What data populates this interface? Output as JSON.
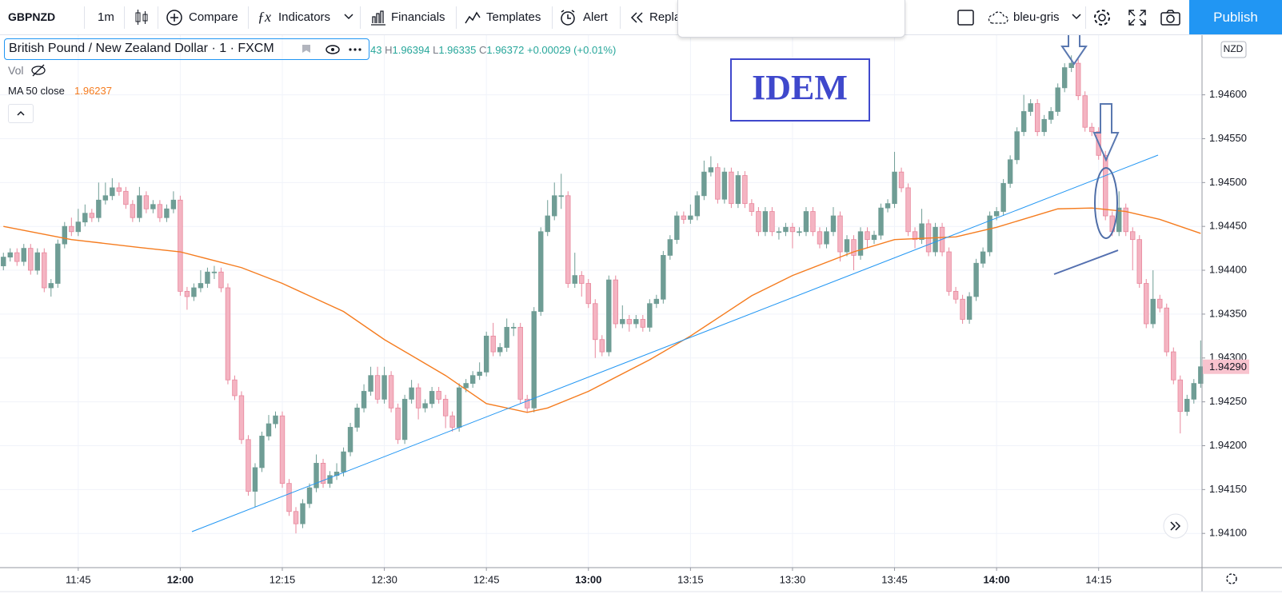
{
  "toolbar": {
    "symbol": "GBPNZD",
    "interval": "1m",
    "buttons": [
      "Compare",
      "Indicators",
      "Financials",
      "Templates",
      "Alert",
      "Repla"
    ],
    "layout_name": "bleu-gris",
    "publish": "Publish"
  },
  "legend": {
    "title": "British Pound / New Zealand Dollar · 1 · FXCM",
    "open_fragment": "43",
    "high_letter": "H",
    "high": "1.96394",
    "low_letter": "L",
    "low": "1.96335",
    "close_letter": "C",
    "close": "1.96372",
    "change": "+0.00029 (+0.01%)",
    "vol": "Vol",
    "ma_name": "MA 50 close",
    "ma_value": "1.96237"
  },
  "chart_data": {
    "type": "candlestick",
    "annotation": "IDEM",
    "currency": "NZD",
    "last_price_label": "1.94290",
    "up_color": "#6f9d95",
    "down_color": "#f4b4c2",
    "down_edge": "#e8879c",
    "grid": true,
    "xlim": [
      -0.5,
      176.2
    ],
    "ylim": [
      1.94061,
      1.94668
    ],
    "yticks": [
      {
        "value": 1.941,
        "label": "1.94100"
      },
      {
        "value": 1.9415,
        "label": "1.94150"
      },
      {
        "value": 1.942,
        "label": "1.94200"
      },
      {
        "value": 1.9425,
        "label": "1.94250"
      },
      {
        "value": 1.943,
        "label": "1.94300"
      },
      {
        "value": 1.9435,
        "label": "1.94350"
      },
      {
        "value": 1.944,
        "label": "1.94400"
      },
      {
        "value": 1.9445,
        "label": "1.94450"
      },
      {
        "value": 1.945,
        "label": "1.94500"
      },
      {
        "value": 1.9455,
        "label": "1.94550"
      },
      {
        "value": 1.946,
        "label": "1.94600"
      }
    ],
    "xticks": [
      {
        "value": 11,
        "label": "11:45"
      },
      {
        "value": 26,
        "label": "12:00"
      },
      {
        "value": 41,
        "label": "12:15"
      },
      {
        "value": 56,
        "label": "12:30"
      },
      {
        "value": 71,
        "label": "12:45"
      },
      {
        "value": 86,
        "label": "13:00"
      },
      {
        "value": 101,
        "label": "13:15"
      },
      {
        "value": 116,
        "label": "13:30"
      },
      {
        "value": 131,
        "label": "13:45"
      },
      {
        "value": 146,
        "label": "14:00"
      },
      {
        "value": 161,
        "label": "14:15"
      }
    ],
    "open": [
      1.94405,
      1.94415,
      1.9442,
      1.9441,
      1.94425,
      1.944,
      1.9442,
      1.9438,
      1.94385,
      1.9443,
      1.9445,
      1.94444,
      1.94455,
      1.94465,
      1.9446,
      1.9448,
      1.94485,
      1.94494,
      1.9449,
      1.94475,
      1.9446,
      1.94485,
      1.9447,
      1.94475,
      1.9446,
      1.9447,
      1.9448,
      1.94376,
      1.9437,
      1.9438,
      1.94385,
      1.94398,
      1.94398,
      1.9438,
      1.94275,
      1.94257,
      1.94207,
      1.94148,
      1.94175,
      1.94211,
      1.94225,
      1.94234,
      1.94157,
      1.94125,
      1.94111,
      1.94134,
      1.94152,
      1.9418,
      1.94157,
      1.94166,
      1.9417,
      1.94193,
      1.94221,
      1.94243,
      1.94262,
      1.9428,
      1.94253,
      1.9428,
      1.94243,
      1.94207,
      1.94253,
      1.94266,
      1.94243,
      1.94248,
      1.94262,
      1.94253,
      1.94234,
      1.94221,
      1.94266,
      1.94271,
      1.9428,
      1.94284,
      1.94325,
      1.94307,
      1.94312,
      1.94335,
      1.94335,
      1.94253,
      1.94243,
      1.94353,
      1.94444,
      1.94462,
      1.94485,
      1.94485,
      1.94385,
      1.94394,
      1.94385,
      1.94362,
      1.94321,
      1.94307,
      1.94389,
      1.94339,
      1.94344,
      1.94339,
      1.94344,
      1.94335,
      1.94362,
      1.94367,
      1.94417,
      1.94435,
      1.94462,
      1.94458,
      1.94462,
      1.94485,
      1.94512,
      1.94517,
      1.94481,
      1.94512,
      1.94476,
      1.94508,
      1.94476,
      1.94467,
      1.94444,
      1.94467,
      1.94444,
      1.94444,
      1.94449,
      1.94444,
      1.94444,
      1.94467,
      1.94444,
      1.9443,
      1.94444,
      1.94462,
      1.94421,
      1.94435,
      1.94417,
      1.94444,
      1.94435,
      1.9444,
      1.94471,
      1.94476,
      1.94512,
      1.94494,
      1.94444,
      1.94435,
      1.94453,
      1.94421,
      1.94449,
      1.94421,
      1.94376,
      1.94367,
      1.94344,
      1.9437,
      1.94408,
      1.94421,
      1.94462,
      1.94467,
      1.94499,
      1.94526,
      1.94558,
      1.94581,
      1.9459,
      1.94558,
      1.94572,
      1.94581,
      1.94608,
      1.94631,
      1.94636,
      1.94599,
      1.94563,
      1.94558,
      1.94531,
      1.94462,
      1.94444,
      1.94471,
      1.94444,
      1.94435,
      1.94385,
      1.94339,
      1.94367,
      1.94357,
      1.94307,
      1.94275,
      1.94239,
      1.94253,
      1.94271
    ],
    "high": [
      1.9442,
      1.94425,
      1.94425,
      1.9443,
      1.9443,
      1.94425,
      1.94425,
      1.9439,
      1.94435,
      1.94455,
      1.9446,
      1.9447,
      1.94475,
      1.9447,
      1.945,
      1.945,
      1.94505,
      1.945,
      1.94495,
      1.9448,
      1.94495,
      1.9449,
      1.9448,
      1.9448,
      1.94475,
      1.9449,
      1.94485,
      1.94381,
      1.94385,
      1.944,
      1.94403,
      1.94405,
      1.94403,
      1.94385,
      1.9428,
      1.94262,
      1.94212,
      1.9418,
      1.94216,
      1.94235,
      1.94239,
      1.94239,
      1.94162,
      1.9413,
      1.94139,
      1.94157,
      1.9419,
      1.94185,
      1.94171,
      1.9418,
      1.94198,
      1.94226,
      1.94248,
      1.9427,
      1.9429,
      1.9429,
      1.9429,
      1.94285,
      1.94248,
      1.94258,
      1.94275,
      1.94271,
      1.94253,
      1.94267,
      1.94267,
      1.94258,
      1.94239,
      1.94271,
      1.94276,
      1.94285,
      1.94295,
      1.9433,
      1.9434,
      1.94317,
      1.94345,
      1.9434,
      1.9434,
      1.94258,
      1.94358,
      1.94449,
      1.9448,
      1.945,
      1.9451,
      1.9449,
      1.9442,
      1.94399,
      1.9439,
      1.94367,
      1.94326,
      1.94394,
      1.94394,
      1.9436,
      1.94349,
      1.94349,
      1.94349,
      1.94367,
      1.94372,
      1.94422,
      1.9444,
      1.94467,
      1.94467,
      1.94475,
      1.9449,
      1.94525,
      1.9453,
      1.94522,
      1.94517,
      1.94517,
      1.94513,
      1.94513,
      1.94481,
      1.94472,
      1.94472,
      1.94472,
      1.94449,
      1.94454,
      1.94454,
      1.94449,
      1.94472,
      1.94472,
      1.94449,
      1.94449,
      1.94472,
      1.94467,
      1.9444,
      1.9444,
      1.94449,
      1.94449,
      1.94445,
      1.94476,
      1.94481,
      1.94535,
      1.94517,
      1.94499,
      1.94449,
      1.9447,
      1.94458,
      1.94454,
      1.94454,
      1.94426,
      1.94381,
      1.94372,
      1.94375,
      1.94413,
      1.94426,
      1.94467,
      1.94472,
      1.94504,
      1.94531,
      1.94563,
      1.946,
      1.94595,
      1.94595,
      1.94577,
      1.94586,
      1.94613,
      1.94636,
      1.94645,
      1.94641,
      1.94604,
      1.94568,
      1.94563,
      1.94536,
      1.94467,
      1.9449,
      1.94476,
      1.94449,
      1.9444,
      1.9439,
      1.944,
      1.94372,
      1.94362,
      1.94312,
      1.9428,
      1.94258,
      1.94276,
      1.9432
    ],
    "low": [
      1.944,
      1.9441,
      1.94405,
      1.94405,
      1.94395,
      1.94395,
      1.94375,
      1.9437,
      1.9438,
      1.94425,
      1.94439,
      1.94439,
      1.9445,
      1.94455,
      1.94455,
      1.94475,
      1.9448,
      1.94485,
      1.9447,
      1.94455,
      1.94455,
      1.94465,
      1.94465,
      1.94455,
      1.94455,
      1.94465,
      1.94371,
      1.94355,
      1.94365,
      1.94375,
      1.9438,
      1.9439,
      1.94375,
      1.9427,
      1.94252,
      1.94202,
      1.94143,
      1.9413,
      1.9417,
      1.94206,
      1.9422,
      1.94152,
      1.9412,
      1.941,
      1.94106,
      1.94129,
      1.94147,
      1.94152,
      1.94152,
      1.94161,
      1.94165,
      1.94188,
      1.94216,
      1.94238,
      1.94257,
      1.94248,
      1.94248,
      1.94238,
      1.94202,
      1.94202,
      1.94248,
      1.9423,
      1.94238,
      1.94243,
      1.94248,
      1.9422,
      1.94216,
      1.94216,
      1.94261,
      1.94266,
      1.94275,
      1.94279,
      1.94302,
      1.94302,
      1.94307,
      1.94325,
      1.94248,
      1.94238,
      1.94238,
      1.94348,
      1.94439,
      1.94457,
      1.9447,
      1.9438,
      1.9438,
      1.9437,
      1.94357,
      1.943,
      1.94302,
      1.94302,
      1.94334,
      1.94334,
      1.9433,
      1.94334,
      1.9433,
      1.9433,
      1.94357,
      1.94362,
      1.94412,
      1.9443,
      1.94453,
      1.94453,
      1.94457,
      1.9448,
      1.94507,
      1.94476,
      1.94476,
      1.94471,
      1.94471,
      1.94471,
      1.94462,
      1.94439,
      1.94439,
      1.94439,
      1.94435,
      1.94439,
      1.94425,
      1.94439,
      1.94439,
      1.94439,
      1.94425,
      1.94425,
      1.94439,
      1.9441,
      1.94416,
      1.944,
      1.94412,
      1.94425,
      1.9443,
      1.94435,
      1.94466,
      1.94471,
      1.94489,
      1.94439,
      1.94425,
      1.9443,
      1.94416,
      1.94416,
      1.94416,
      1.94371,
      1.94362,
      1.94339,
      1.94339,
      1.94365,
      1.94403,
      1.94416,
      1.94457,
      1.94462,
      1.94494,
      1.94521,
      1.94553,
      1.94576,
      1.94553,
      1.94553,
      1.94567,
      1.94576,
      1.94603,
      1.94626,
      1.94594,
      1.94558,
      1.94553,
      1.94526,
      1.94457,
      1.94439,
      1.94439,
      1.94439,
      1.944,
      1.9438,
      1.94334,
      1.94334,
      1.94352,
      1.94302,
      1.9427,
      1.94214,
      1.94234,
      1.94248,
      1.94266
    ],
    "close": [
      1.94415,
      1.9442,
      1.9441,
      1.94425,
      1.944,
      1.9442,
      1.9438,
      1.94385,
      1.9443,
      1.9445,
      1.94444,
      1.94455,
      1.94465,
      1.9446,
      1.9448,
      1.94485,
      1.94494,
      1.9449,
      1.94475,
      1.9446,
      1.94485,
      1.9447,
      1.94475,
      1.9446,
      1.9447,
      1.9448,
      1.94376,
      1.9437,
      1.9438,
      1.94385,
      1.94398,
      1.94398,
      1.9438,
      1.94275,
      1.94257,
      1.94207,
      1.94148,
      1.94175,
      1.94211,
      1.94225,
      1.94234,
      1.94157,
      1.94125,
      1.94111,
      1.94134,
      1.94152,
      1.9418,
      1.94157,
      1.94166,
      1.9417,
      1.94193,
      1.94221,
      1.94243,
      1.94262,
      1.9428,
      1.94253,
      1.9428,
      1.94243,
      1.94207,
      1.94253,
      1.94266,
      1.94243,
      1.94248,
      1.94262,
      1.94253,
      1.94234,
      1.94221,
      1.94266,
      1.94271,
      1.9428,
      1.94284,
      1.94325,
      1.94307,
      1.94312,
      1.94335,
      1.94335,
      1.94253,
      1.94243,
      1.94353,
      1.94444,
      1.94462,
      1.94485,
      1.94485,
      1.94385,
      1.94394,
      1.94385,
      1.94362,
      1.94321,
      1.94307,
      1.94389,
      1.94339,
      1.94344,
      1.94339,
      1.94344,
      1.94335,
      1.94362,
      1.94367,
      1.94417,
      1.94435,
      1.94462,
      1.94458,
      1.94462,
      1.94485,
      1.94512,
      1.94517,
      1.94481,
      1.94512,
      1.94476,
      1.94508,
      1.94476,
      1.94467,
      1.94444,
      1.94467,
      1.94444,
      1.94444,
      1.94449,
      1.94444,
      1.94444,
      1.94467,
      1.94444,
      1.9443,
      1.94444,
      1.94462,
      1.94421,
      1.94435,
      1.94417,
      1.94444,
      1.94435,
      1.9444,
      1.94471,
      1.94476,
      1.94512,
      1.94494,
      1.94444,
      1.94435,
      1.94453,
      1.94421,
      1.94449,
      1.94421,
      1.94376,
      1.94367,
      1.94344,
      1.9437,
      1.94408,
      1.94421,
      1.94462,
      1.94467,
      1.94499,
      1.94526,
      1.94558,
      1.94581,
      1.9459,
      1.94558,
      1.94572,
      1.94581,
      1.94608,
      1.94631,
      1.94636,
      1.94599,
      1.94563,
      1.94558,
      1.94531,
      1.94462,
      1.94444,
      1.94471,
      1.94444,
      1.94435,
      1.94385,
      1.94339,
      1.94367,
      1.94357,
      1.94307,
      1.94275,
      1.94239,
      1.94253,
      1.94271,
      1.9429
    ],
    "ma": {
      "color": "#f57c1f",
      "x": [
        0,
        10,
        20,
        26,
        35,
        41,
        50,
        56,
        65,
        71,
        77,
        80,
        86,
        95,
        101,
        110,
        116,
        125,
        131,
        140,
        146,
        155,
        160,
        165,
        170,
        176
      ],
      "values": [
        1.9445,
        1.94435,
        1.94426,
        1.94421,
        1.94403,
        1.94385,
        1.94353,
        1.94321,
        1.9428,
        1.94248,
        1.94238,
        1.94243,
        1.94262,
        1.94298,
        1.94325,
        1.94371,
        1.94394,
        1.94421,
        1.94435,
        1.94438,
        1.94449,
        1.9447,
        1.94471,
        1.94467,
        1.94458,
        1.94442
      ]
    }
  }
}
